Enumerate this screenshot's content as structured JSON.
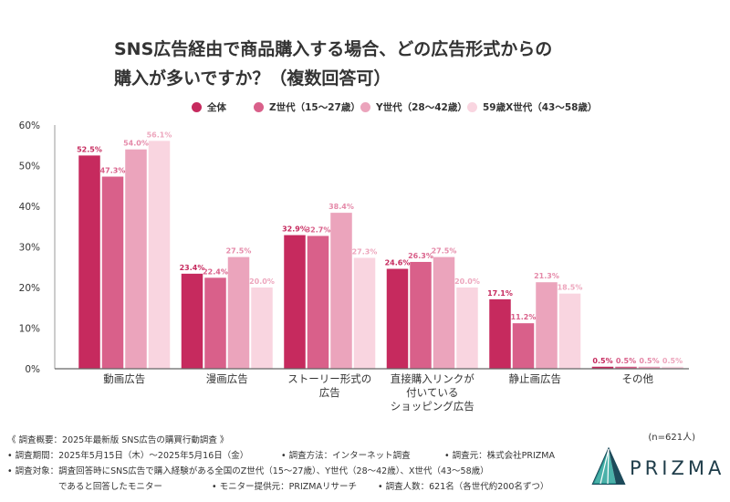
{
  "title_line1": "SNS広告経由で商品購入する場合、どの広告形式からの",
  "title_line2": "購入が多いですか？（複数回答可）",
  "legend": [
    {
      "name": "全体",
      "color": "#c62a5e"
    },
    {
      "name": "Z世代（15〜27歳）",
      "color": "#d9608a"
    },
    {
      "name": "Y世代（28〜42歳）",
      "color": "#eba4bc"
    },
    {
      "name": "59歳X世代（43〜58歳）",
      "color": "#f9d5e0"
    }
  ],
  "chart_data": {
    "type": "bar",
    "categories": [
      [
        "動画広告"
      ],
      [
        "漫画広告"
      ],
      [
        "ストーリー形式の",
        "広告"
      ],
      [
        "直接購入リンクが",
        "付いている",
        "ショッピング広告"
      ],
      [
        "静止画広告"
      ],
      [
        "その他"
      ]
    ],
    "series": [
      {
        "name": "全体",
        "color": "#c62a5e",
        "label_color": "#c62a5e",
        "values": [
          52.5,
          23.4,
          32.9,
          24.6,
          17.1,
          0.5
        ],
        "labels": [
          "52.5%",
          "23.4%",
          "32.9%",
          "24.6%",
          "17.1%",
          "0.5%"
        ]
      },
      {
        "name": "Z世代（15〜27歳）",
        "color": "#d9608a",
        "label_color": "#d9608a",
        "values": [
          47.3,
          22.4,
          32.7,
          26.3,
          11.2,
          0.5
        ],
        "labels": [
          "47.3%",
          "22.4%",
          "32.7%",
          "26.3%",
          "11.2%",
          "0.5%"
        ]
      },
      {
        "name": "Y世代（28〜42歳）",
        "color": "#eba4bc",
        "label_color": "#e58aa9",
        "values": [
          54.0,
          27.5,
          38.4,
          27.5,
          21.3,
          0.5
        ],
        "labels": [
          "54.0%",
          "27.5%",
          "38.4%",
          "27.5%",
          "21.3%",
          "0.5%"
        ]
      },
      {
        "name": "59歳X世代（43〜58歳）",
        "color": "#f9d5e0",
        "label_color": "#eda6bd",
        "values": [
          56.1,
          20.0,
          27.3,
          20.0,
          18.5,
          0.5
        ],
        "labels": [
          "56.1%",
          "20.0%",
          "27.3%",
          "20.0%",
          "18.5%",
          "0.5%"
        ]
      }
    ],
    "ylim": [
      0,
      60
    ],
    "yticks": [
      0,
      10,
      20,
      30,
      40,
      50,
      60
    ],
    "ytick_labels": [
      "0%",
      "10%",
      "20%",
      "30%",
      "40%",
      "50%",
      "60%"
    ],
    "grid": false
  },
  "sample_note": "(n=621人)",
  "footer": {
    "summary": "《 調査概要：2025年最新版 SNS広告の購買行動調査 》",
    "period": "• 調査期間：2025年5月15日（木）〜2025年5月16日（金）",
    "method": "• 調査方法：インターネット調査",
    "source": "• 調査元：株式会社PRIZMA",
    "target": "• 調査対象：調査回答時にSNS広告で購入経験がある全国のZ世代（15〜27歳）、Y世代（28〜42歳）、X世代（43〜58歳）",
    "target2": "であると回答したモニター",
    "provider": "• モニター提供元：PRIZMAリサーチ",
    "count": "• 調査人数：621名（各世代約200名ずつ）"
  },
  "logo": {
    "text": "PRIZMA",
    "icon": "prizma-prism-icon"
  }
}
